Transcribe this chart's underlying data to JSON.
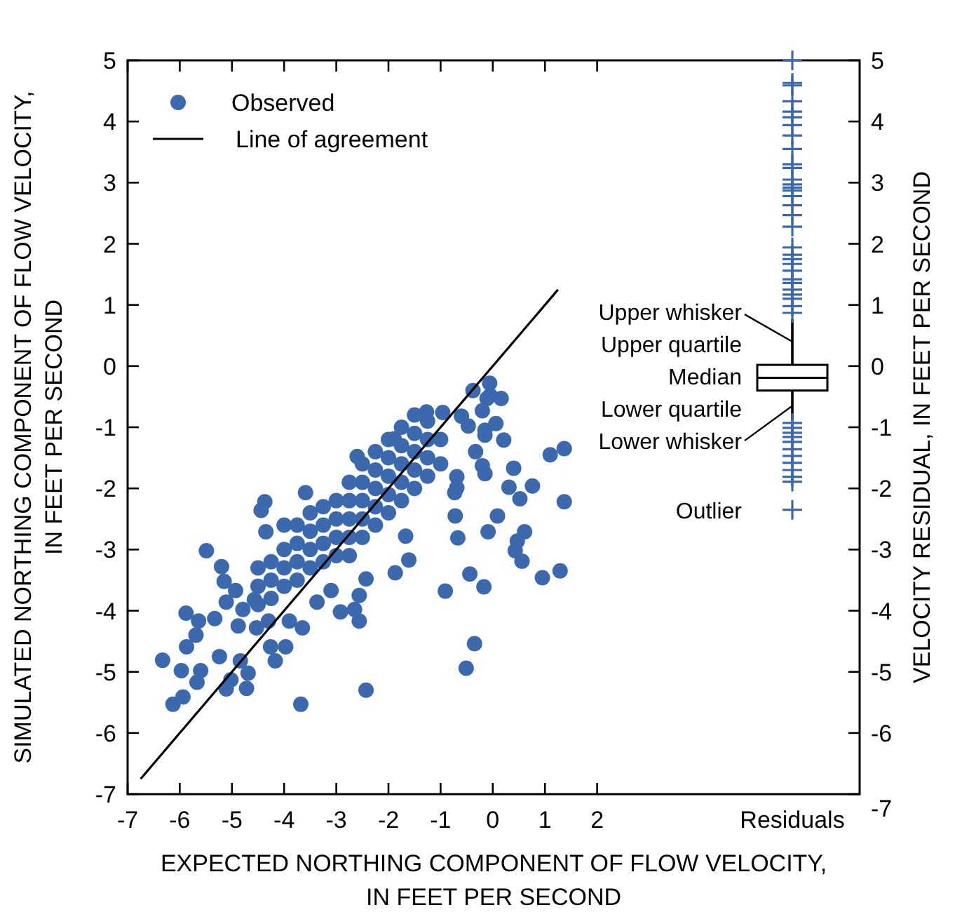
{
  "chart_data": [
    {
      "type": "scatter",
      "xlabel": "EXPECTED NORTHING COMPONENT OF FLOW VELOCITY,\nIN FEET PER SECOND",
      "ylabel": "SIMULATED NORTHING COMPONENT OF FLOW VELOCITY,\nIN FEET PER SECOND",
      "xlim": [
        -7,
        3
      ],
      "xticks": [
        -7,
        -6,
        -5,
        -4,
        -3,
        -2,
        -1,
        0,
        1,
        2
      ],
      "ylim": [
        -7,
        5
      ],
      "yticks": [
        -7,
        -6,
        -5,
        -4,
        -3,
        -2,
        -1,
        0,
        1,
        2,
        3,
        4,
        5
      ],
      "legend": "top left",
      "series": [
        {
          "name": "Observed",
          "type": "scatter",
          "marker": "circle",
          "color": "#3c69ae",
          "x": [
            -6.33,
            -6.13,
            -5.94,
            -5.88,
            -5.64,
            -5.97,
            -5.87,
            -5.69,
            -5.6,
            -5.67,
            -5.49,
            -5.2,
            -5.15,
            -5.24,
            -5.11,
            -5.33,
            -5.11,
            -4.93,
            -4.88,
            -4.84,
            -4.72,
            -4.69,
            -5.02,
            -4.79,
            -4.57,
            -4.53,
            -4.44,
            -4.37,
            -4.35,
            -4.3,
            -4.26,
            -4.17,
            -3.97,
            -3.68,
            -3.59,
            -3.9,
            -3.65,
            -3.37,
            -3.1,
            -2.92,
            -2.65,
            -2.56,
            -2.43,
            -2.43,
            -2.56,
            -2.6,
            -1.89,
            -1.87,
            -1.61,
            -1.67,
            -0.91,
            -0.69,
            -0.72,
            -0.67,
            -0.44,
            -0.17,
            -0.35,
            -0.51,
            -0.09,
            0.09,
            0.4,
            0.31,
            0.52,
            0.61,
            0.47,
            0.43,
            0.56,
            0.76,
            0.95,
            1.29,
            1.37,
            1.37,
            1.1,
            0.21,
            0.06,
            -0.2,
            -0.15,
            -0.06,
            -0.05,
            -0.11,
            0.16,
            -0.38,
            -0.6,
            -0.96,
            -1.27,
            -0.47,
            -0.15,
            -0.33,
            -0.2,
            -0.15,
            -0.69,
            -0.73,
            -4.5,
            -4.5,
            -4.5,
            -4.25,
            -4.25,
            -4.25,
            -4,
            -4,
            -4,
            -4,
            -3.75,
            -3.75,
            -3.75,
            -3.75,
            -3.5,
            -3.5,
            -3.5,
            -3.5,
            -3.25,
            -3.25,
            -3.25,
            -3.25,
            -3,
            -3,
            -3,
            -3,
            -2.75,
            -2.75,
            -2.75,
            -2.75,
            -2.75,
            -2.5,
            -2.5,
            -2.5,
            -2.5,
            -2.5,
            -2.25,
            -2.25,
            -2.25,
            -2.25,
            -2.25,
            -2,
            -2,
            -2,
            -2,
            -2,
            -1.75,
            -1.75,
            -1.75,
            -1.75,
            -1.75,
            -1.5,
            -1.5,
            -1.5,
            -1.5,
            -1.5,
            -1.25,
            -1.25,
            -1.25,
            -1.25,
            -1,
            -1
          ],
          "values": [
            -4.81,
            -5.53,
            -5.41,
            -4.04,
            -4.17,
            -4.98,
            -4.59,
            -4.4,
            -4.98,
            -5.17,
            -3.02,
            -3.28,
            -3.52,
            -4.75,
            -5.28,
            -4.13,
            -3.86,
            -3.67,
            -4.25,
            -4.82,
            -5.27,
            -5.02,
            -5.13,
            -3.98,
            -3.82,
            -4.28,
            -2.36,
            -2.22,
            -2.71,
            -4.17,
            -4.59,
            -4.82,
            -4.59,
            -5.53,
            -2.07,
            -4.17,
            -4.28,
            -3.86,
            -3.67,
            -4.02,
            -3.98,
            -4.17,
            -5.3,
            -3.48,
            -3.75,
            -1.48,
            -1.19,
            -3.38,
            -3.17,
            -2.78,
            -3.68,
            -1.99,
            -2.45,
            -2.81,
            -3.4,
            -3.61,
            -4.54,
            -4.94,
            -2.71,
            -2.45,
            -1.67,
            -1.98,
            -2.17,
            -2.71,
            -2.86,
            -3.02,
            -3.19,
            -1.96,
            -3.46,
            -3.35,
            -2.22,
            -1.35,
            -1.45,
            -1.21,
            -0.94,
            -0.73,
            -1.05,
            -0.28,
            -0.48,
            -0.53,
            -0.53,
            -0.4,
            -0.82,
            -0.76,
            -0.75,
            -0.98,
            -1.13,
            -1.4,
            -1.63,
            -1.76,
            -1.81,
            -2.07,
            -3.3,
            -3.6,
            -3.9,
            -3.2,
            -3.5,
            -3.8,
            -2.6,
            -3,
            -3.3,
            -3.6,
            -2.6,
            -2.9,
            -3.2,
            -3.5,
            -2.4,
            -2.7,
            -3,
            -3.3,
            -2.3,
            -2.6,
            -2.9,
            -3.2,
            -2.2,
            -2.5,
            -2.8,
            -3.1,
            -1.9,
            -2.2,
            -2.5,
            -2.8,
            -3.1,
            -1.6,
            -1.9,
            -2.2,
            -2.5,
            -2.8,
            -1.4,
            -1.7,
            -2,
            -2.3,
            -2.6,
            -1.2,
            -1.5,
            -1.8,
            -2.1,
            -2.4,
            -1,
            -1.3,
            -1.6,
            -1.9,
            -2.2,
            -0.8,
            -1.1,
            -1.4,
            -1.7,
            -2,
            -0.9,
            -1.2,
            -1.5,
            -1.8,
            -1.2,
            -1.6
          ]
        },
        {
          "name": "Line of agreement",
          "type": "line",
          "color": "#000000",
          "x": [
            -6.75,
            1.25
          ],
          "values": [
            -6.75,
            1.25
          ]
        }
      ]
    },
    {
      "type": "box",
      "categories": [
        "Residuals"
      ],
      "ylabel": "VELOCITY RESIDUAL, IN FEET PER SECOND",
      "ylim": [
        -7,
        5
      ],
      "yticks": [
        -7,
        -6,
        -5,
        -4,
        -3,
        -2,
        -1,
        0,
        1,
        2,
        3,
        4,
        5
      ],
      "marker": "cross",
      "series": [
        {
          "type": "box",
          "color": "#000000",
          "boxes": [
            {
              "low": -0.88,
              "q1": -0.4,
              "median": -0.19,
              "q3": 0.02,
              "high": 0.77
            }
          ]
        },
        {
          "type": "scatter",
          "color": "#3c69ae",
          "x": [
            "Residuals",
            "Residuals",
            "Residuals",
            "Residuals",
            "Residuals",
            "Residuals",
            "Residuals",
            "Residuals",
            "Residuals",
            "Residuals",
            "Residuals",
            "Residuals",
            "Residuals",
            "Residuals",
            "Residuals",
            "Residuals",
            "Residuals",
            "Residuals",
            "Residuals",
            "Residuals",
            "Residuals",
            "Residuals",
            "Residuals",
            "Residuals",
            "Residuals",
            "Residuals",
            "Residuals",
            "Residuals",
            "Residuals",
            "Residuals",
            "Residuals",
            "Residuals",
            "Residuals",
            "Residuals",
            "Residuals",
            "Residuals",
            "Residuals",
            "Residuals",
            "Residuals",
            "Residuals",
            "Residuals",
            "Residuals",
            "Residuals"
          ],
          "values": [
            5.0,
            4.63,
            4.59,
            4.33,
            4.16,
            4.07,
            3.94,
            3.77,
            3.55,
            3.3,
            3.24,
            3.05,
            2.97,
            2.92,
            2.87,
            2.78,
            2.63,
            2.47,
            2.28,
            1.94,
            1.82,
            1.75,
            1.67,
            1.56,
            1.42,
            1.36,
            1.25,
            1.17,
            1.1,
            0.98,
            0.87,
            -0.93,
            -1.01,
            -1.09,
            -1.16,
            -1.24,
            -1.36,
            -1.47,
            -1.58,
            -1.7,
            -1.81,
            -1.89,
            -2.35
          ]
        }
      ],
      "annotations": [
        {
          "text": "Upper whisker",
          "x": "Residuals",
          "y": 0.4
        },
        {
          "text": "Upper quartile",
          "x": "Residuals",
          "y": 0.02
        },
        {
          "text": "Median",
          "x": "Residuals",
          "y": -0.19
        },
        {
          "text": "Lower quartile",
          "x": "Residuals",
          "y": -0.4
        },
        {
          "text": "Lower whisker",
          "x": "Residuals",
          "y": -0.65
        },
        {
          "text": "Outlier",
          "x": "Residuals",
          "y": -2.35
        }
      ]
    }
  ]
}
